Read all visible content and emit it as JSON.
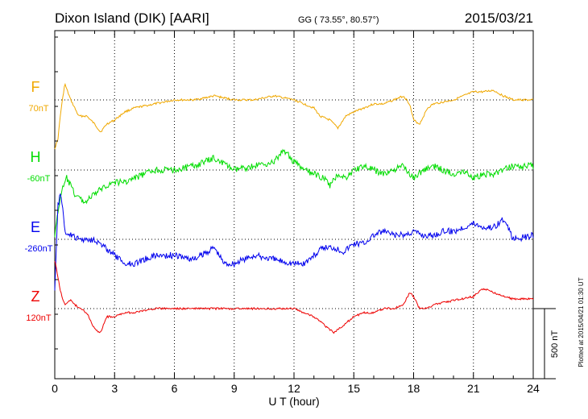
{
  "chart_data": {
    "type": "line",
    "title": "Dixon Island (DIK)  [AARI]",
    "coords": "GG ( 73.55°,  80.57°)",
    "date": "2015/03/21",
    "xlabel": "U T (hour)",
    "xlim": [
      0,
      24
    ],
    "xticks": [
      "0",
      "3",
      "6",
      "9",
      "12",
      "15",
      "18",
      "21",
      "24"
    ],
    "grid": "vertical dotted every 3 hours, dotted baseline per component",
    "scale_bar": "500 nT",
    "plotted_note": "Plotted at 2015/04/21 01:30 UT",
    "series": [
      {
        "name": "F",
        "baseline": "70nT",
        "color": "#f0a800",
        "t": [
          0,
          0.15,
          0.3,
          0.5,
          0.8,
          1.2,
          1.6,
          2.0,
          2.3,
          2.6,
          3.0,
          3.5,
          4.0,
          5.0,
          6.0,
          7.0,
          8.0,
          9.0,
          10.0,
          11.0,
          12.0,
          12.5,
          13.0,
          13.3,
          13.8,
          14.2,
          14.6,
          15.0,
          15.5,
          16.0,
          16.5,
          17.0,
          17.5,
          17.8,
          18.0,
          18.3,
          18.7,
          19.0,
          20.0,
          21.0,
          21.5,
          22.0,
          22.5,
          23.0,
          24.0
        ],
        "v": [
          60,
          50,
          15,
          -20,
          0,
          20,
          20,
          30,
          40,
          30,
          25,
          15,
          10,
          5,
          0,
          0,
          -5,
          0,
          0,
          -5,
          0,
          5,
          10,
          20,
          25,
          35,
          20,
          15,
          10,
          5,
          5,
          0,
          -5,
          5,
          25,
          30,
          10,
          5,
          0,
          -10,
          -10,
          -12,
          -5,
          0,
          0
        ]
      },
      {
        "name": "H",
        "baseline": "-60nT",
        "color": "#00dd00",
        "t": [
          0,
          0.3,
          0.6,
          1.0,
          1.5,
          2.0,
          2.5,
          3.0,
          3.5,
          4.0,
          5.0,
          6.0,
          7.0,
          8.0,
          9.0,
          10.0,
          11.0,
          11.5,
          12.0,
          12.5,
          13.0,
          13.5,
          13.8,
          14.2,
          14.6,
          15.0,
          15.5,
          16.0,
          16.5,
          17.0,
          17.5,
          18.0,
          18.5,
          19.0,
          19.5,
          20.0,
          20.5,
          21.0,
          21.5,
          22.0,
          22.5,
          23.0,
          24.0
        ],
        "v": [
          80,
          30,
          10,
          30,
          40,
          30,
          20,
          15,
          15,
          10,
          0,
          0,
          -5,
          -15,
          0,
          -5,
          -10,
          -25,
          -10,
          0,
          5,
          10,
          20,
          5,
          10,
          0,
          -5,
          0,
          5,
          0,
          -5,
          10,
          0,
          -5,
          0,
          5,
          0,
          10,
          5,
          5,
          0,
          -5,
          -5
        ]
      },
      {
        "name": "E",
        "baseline": "-260nT",
        "color": "#0000ee",
        "t": [
          0,
          0.15,
          0.3,
          0.5,
          0.8,
          1.2,
          1.6,
          2.0,
          2.5,
          3.0,
          3.5,
          4.0,
          5.0,
          6.0,
          7.0,
          8.0,
          8.5,
          9.0,
          10.0,
          11.0,
          12.0,
          12.5,
          13.0,
          13.5,
          14.0,
          14.5,
          15.0,
          15.5,
          16.0,
          16.5,
          17.0,
          17.5,
          18.0,
          18.5,
          19.0,
          19.5,
          20.0,
          20.5,
          21.0,
          21.5,
          22.0,
          22.5,
          23.0,
          24.0
        ],
        "v": [
          60,
          -40,
          -60,
          -10,
          -5,
          0,
          0,
          0,
          10,
          20,
          30,
          30,
          20,
          20,
          25,
          10,
          30,
          30,
          20,
          25,
          30,
          30,
          20,
          10,
          10,
          15,
          5,
          5,
          -5,
          -10,
          -5,
          -5,
          -10,
          -5,
          -5,
          -10,
          -10,
          -15,
          -20,
          -15,
          -15,
          -25,
          0,
          -5
        ]
      },
      {
        "name": "Z",
        "baseline": "120nT",
        "color": "#ee0000",
        "t": [
          0,
          0.15,
          0.3,
          0.5,
          0.8,
          1.0,
          1.3,
          1.6,
          2.0,
          2.3,
          2.6,
          3.0,
          3.5,
          4.0,
          5.0,
          6.0,
          7.0,
          8.0,
          9.0,
          10.0,
          11.0,
          12.0,
          12.5,
          13.0,
          13.5,
          14.0,
          14.5,
          15.0,
          15.5,
          16.0,
          16.5,
          17.0,
          17.5,
          17.8,
          18.0,
          18.3,
          18.7,
          19.0,
          20.0,
          21.0,
          21.5,
          22.0,
          22.5,
          23.0,
          24.0
        ],
        "v": [
          -60,
          -40,
          -20,
          -5,
          -10,
          -5,
          0,
          5,
          25,
          30,
          10,
          10,
          5,
          5,
          0,
          0,
          0,
          0,
          0,
          0,
          0,
          0,
          5,
          10,
          20,
          30,
          20,
          10,
          5,
          5,
          0,
          0,
          -5,
          -20,
          -15,
          0,
          0,
          -5,
          -10,
          -15,
          -25,
          -20,
          -15,
          -12,
          -12
        ]
      }
    ]
  }
}
